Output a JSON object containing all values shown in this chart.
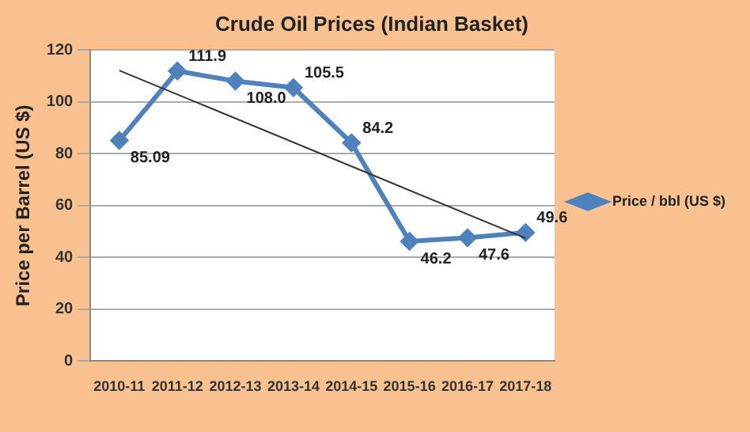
{
  "chart_data": {
    "type": "line",
    "title": "Crude Oil Prices (Indian Basket)",
    "ylabel": "Price per Barrel (US $)",
    "categories": [
      "2010-11",
      "2011-12",
      "2012-13",
      "2013-14",
      "2014-15",
      "2015-16",
      "2016-17",
      "2017-18"
    ],
    "series": [
      {
        "name": "Price / bbl (US $)",
        "color": "#4f81bd",
        "values": [
          85.09,
          111.9,
          108.0,
          105.5,
          84.2,
          46.2,
          47.6,
          49.6
        ],
        "marker": "diamond",
        "value_labels": [
          "85.09",
          "111.9",
          "108.0",
          "105.5",
          "84.2",
          "46.2",
          "47.6",
          "49.6"
        ]
      },
      {
        "type": "line",
        "color": "#333333",
        "values": [
          112.1,
          null,
          null,
          null,
          null,
          null,
          null,
          47.4
        ],
        "marker": "none"
      }
    ],
    "ylim": [
      0,
      120
    ],
    "yticks": [
      0,
      20,
      40,
      60,
      80,
      100,
      120
    ],
    "grid": "y",
    "legend": "right"
  }
}
